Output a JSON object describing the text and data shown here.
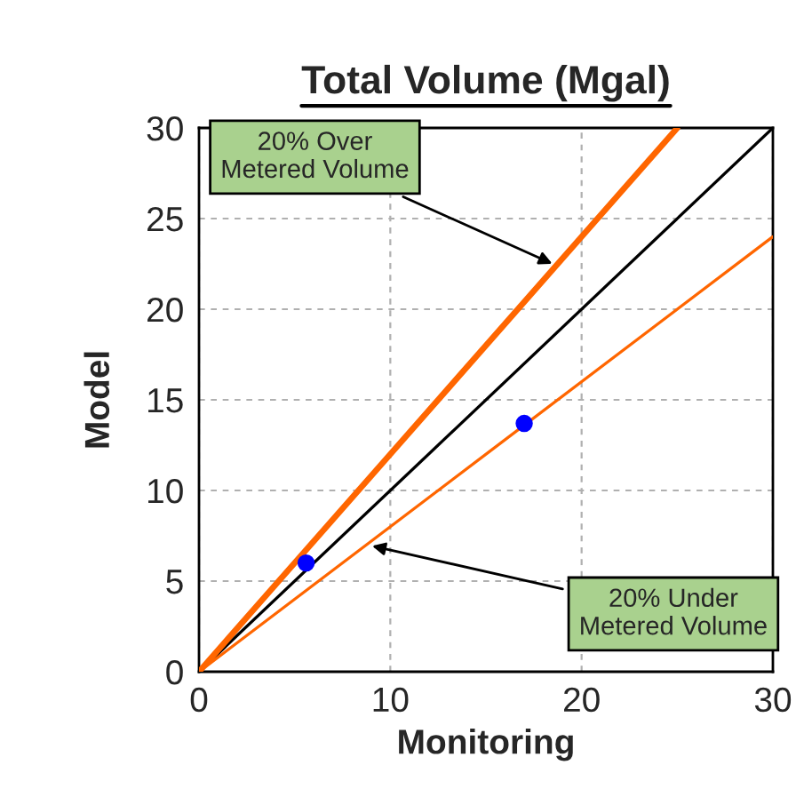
{
  "chart_data": {
    "type": "line",
    "title": "Total Volume (Mgal)",
    "xlabel": "Monitoring",
    "ylabel": "Model",
    "xlim": [
      0,
      30
    ],
    "ylim": [
      0,
      30
    ],
    "xticks": [
      0,
      10,
      20,
      30
    ],
    "yticks": [
      0,
      5,
      10,
      15,
      20,
      25,
      30
    ],
    "grid": true,
    "legend": false,
    "series": [
      {
        "color": "#000000",
        "x": [
          0,
          30
        ],
        "values": [
          0,
          30
        ]
      },
      {
        "color": "#ff6600",
        "x": [
          0,
          25
        ],
        "values": [
          0,
          30
        ]
      },
      {
        "color": "#ff6600",
        "x": [
          0,
          30
        ],
        "values": [
          0,
          24
        ]
      },
      {
        "type": "scatter",
        "color": "#0000ff",
        "marker": "circle",
        "x": [
          5.6,
          17
        ],
        "values": [
          6.0,
          13.7
        ]
      }
    ],
    "annotations": [
      {
        "text": "20% Over\nMetered Volume",
        "x": 18.7,
        "y": 22.4
      },
      {
        "text": "20% Under\nMetered Volume",
        "x": 8.8,
        "y": 7.0
      }
    ]
  }
}
